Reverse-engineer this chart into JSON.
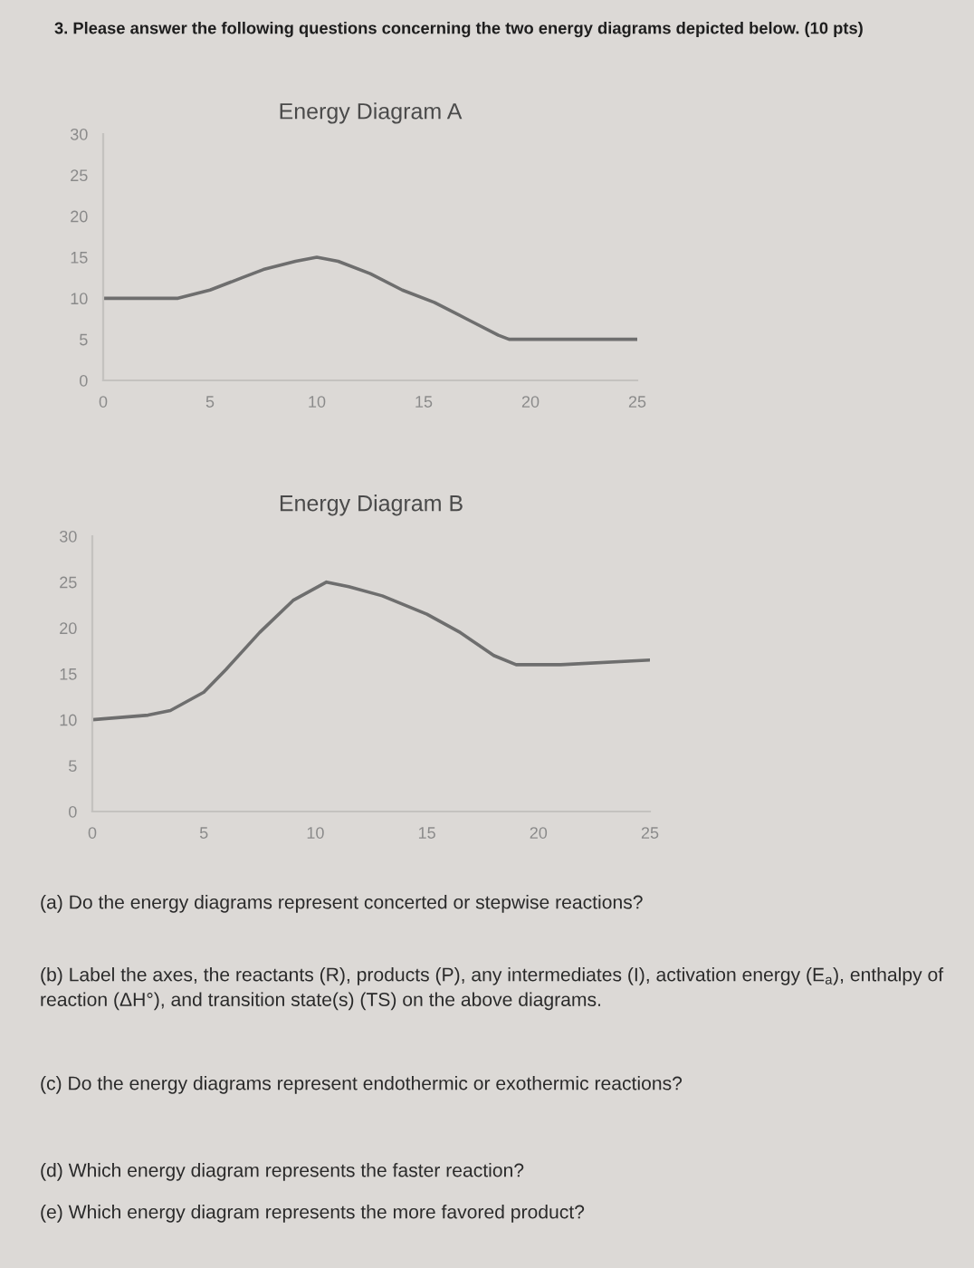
{
  "chart_data": [
    {
      "type": "line",
      "title": "Energy Diagram A",
      "x": [
        0,
        2,
        3.5,
        5,
        6.5,
        7.5,
        9,
        10,
        11,
        12.5,
        14,
        15.5,
        17,
        18.5,
        19,
        21,
        23,
        25
      ],
      "values": [
        10,
        10,
        10,
        11,
        12.5,
        13.5,
        14.5,
        15,
        14.5,
        13,
        11,
        9.5,
        7.5,
        5.5,
        5,
        5,
        5,
        5
      ],
      "color": "#6e6e6e",
      "xlim": [
        0,
        25
      ],
      "xticks": [
        0,
        5,
        10,
        15,
        20,
        25
      ],
      "ylim": [
        0,
        30
      ],
      "yticks": [
        0,
        5,
        10,
        15,
        20,
        25,
        30
      ],
      "annotations": [
        "3. Please answer the following questions concerning the two energy diagrams depicted below. (10 pts)"
      ]
    },
    {
      "type": "line",
      "title": "Energy Diagram B",
      "x": [
        0,
        2.5,
        3.5,
        5,
        6,
        7.5,
        9,
        10.5,
        11.5,
        13,
        15,
        16.5,
        18,
        19,
        21,
        25
      ],
      "values": [
        10,
        10.5,
        11,
        13,
        15.5,
        19.5,
        23,
        25,
        24.5,
        23.5,
        21.5,
        19.5,
        17,
        16,
        16,
        16.5
      ],
      "color": "#6e6e6e",
      "xlim": [
        0,
        25
      ],
      "xticks": [
        0,
        5,
        10,
        15,
        20,
        25
      ],
      "ylim": [
        0,
        30
      ],
      "yticks": [
        0,
        5,
        10,
        15,
        20,
        25,
        30
      ],
      "annotations": [
        "(a) Do the energy diagrams represent concerted or stepwise reactions?",
        "(b) Label the axes, the reactants (R), products (P), any intermediates (I), activation energy (E$_{a}$), enthalpy of reaction (ΔH°), and transition state(s) (TS) on the above diagrams.",
        "(c) Do the energy diagrams represent endothermic or exothermic reactions?",
        "(d) Which energy diagram represents the faster reaction?",
        "(e) Which energy diagram represents the more favored product?"
      ]
    }
  ]
}
